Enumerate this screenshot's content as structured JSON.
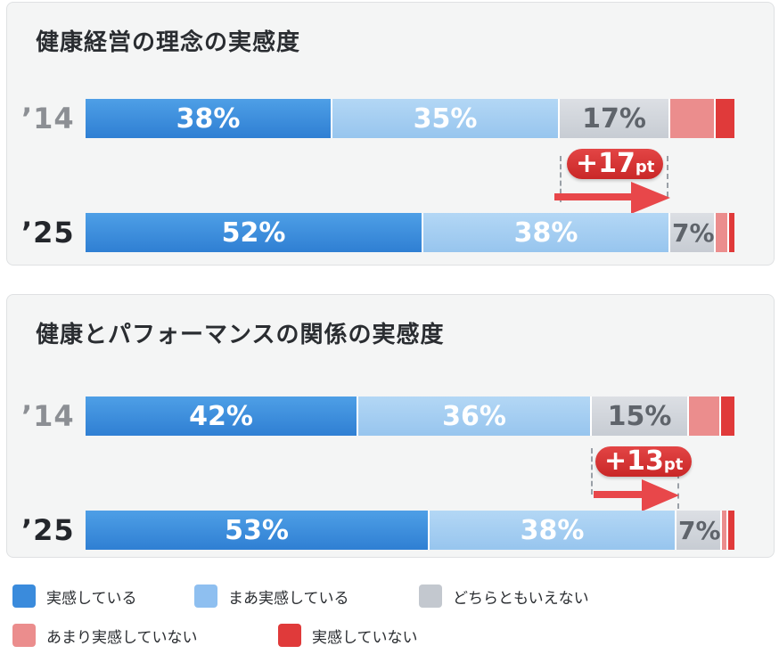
{
  "chart_data": [
    {
      "type": "bar",
      "title": "健康経営の理念の実感度",
      "categories": [
        "’14",
        "’25"
      ],
      "series_order": [
        "実感している",
        "まあ実感している",
        "どちらともいえない",
        "あまり実感していない",
        "実感していない"
      ],
      "rows": [
        {
          "year": "’14",
          "values": [
            38,
            35,
            17,
            7,
            3
          ],
          "labels": [
            "38%",
            "35%",
            "17%",
            "",
            ""
          ]
        },
        {
          "year": "’25",
          "values": [
            52,
            38,
            7,
            2,
            1
          ],
          "labels": [
            "52%",
            "38%",
            "7%",
            "",
            ""
          ]
        }
      ],
      "annotation": {
        "main": "+17",
        "unit": "pt"
      }
    },
    {
      "type": "bar",
      "title": "健康とパフォーマンスの関係の実感度",
      "categories": [
        "’14",
        "’25"
      ],
      "series_order": [
        "実感している",
        "まあ実感している",
        "どちらともいえない",
        "あまり実感していない",
        "実感していない"
      ],
      "rows": [
        {
          "year": "’14",
          "values": [
            42,
            36,
            15,
            5,
            2
          ],
          "labels": [
            "42%",
            "36%",
            "15%",
            "",
            ""
          ]
        },
        {
          "year": "’25",
          "values": [
            53,
            38,
            7,
            1,
            1
          ],
          "labels": [
            "53%",
            "38%",
            "7%",
            "",
            ""
          ]
        }
      ],
      "annotation": {
        "main": "+13",
        "unit": "pt"
      }
    }
  ],
  "legend": [
    {
      "label": "実感している",
      "color": "#3a8bdc"
    },
    {
      "label": "まあ実感している",
      "color": "#8ebff0"
    },
    {
      "label": "どちらともいえない",
      "color": "#c3c8cf"
    },
    {
      "label": "あまり実感していない",
      "color": "#eb8d8d"
    },
    {
      "label": "実感していない",
      "color": "#e03a3a"
    }
  ]
}
